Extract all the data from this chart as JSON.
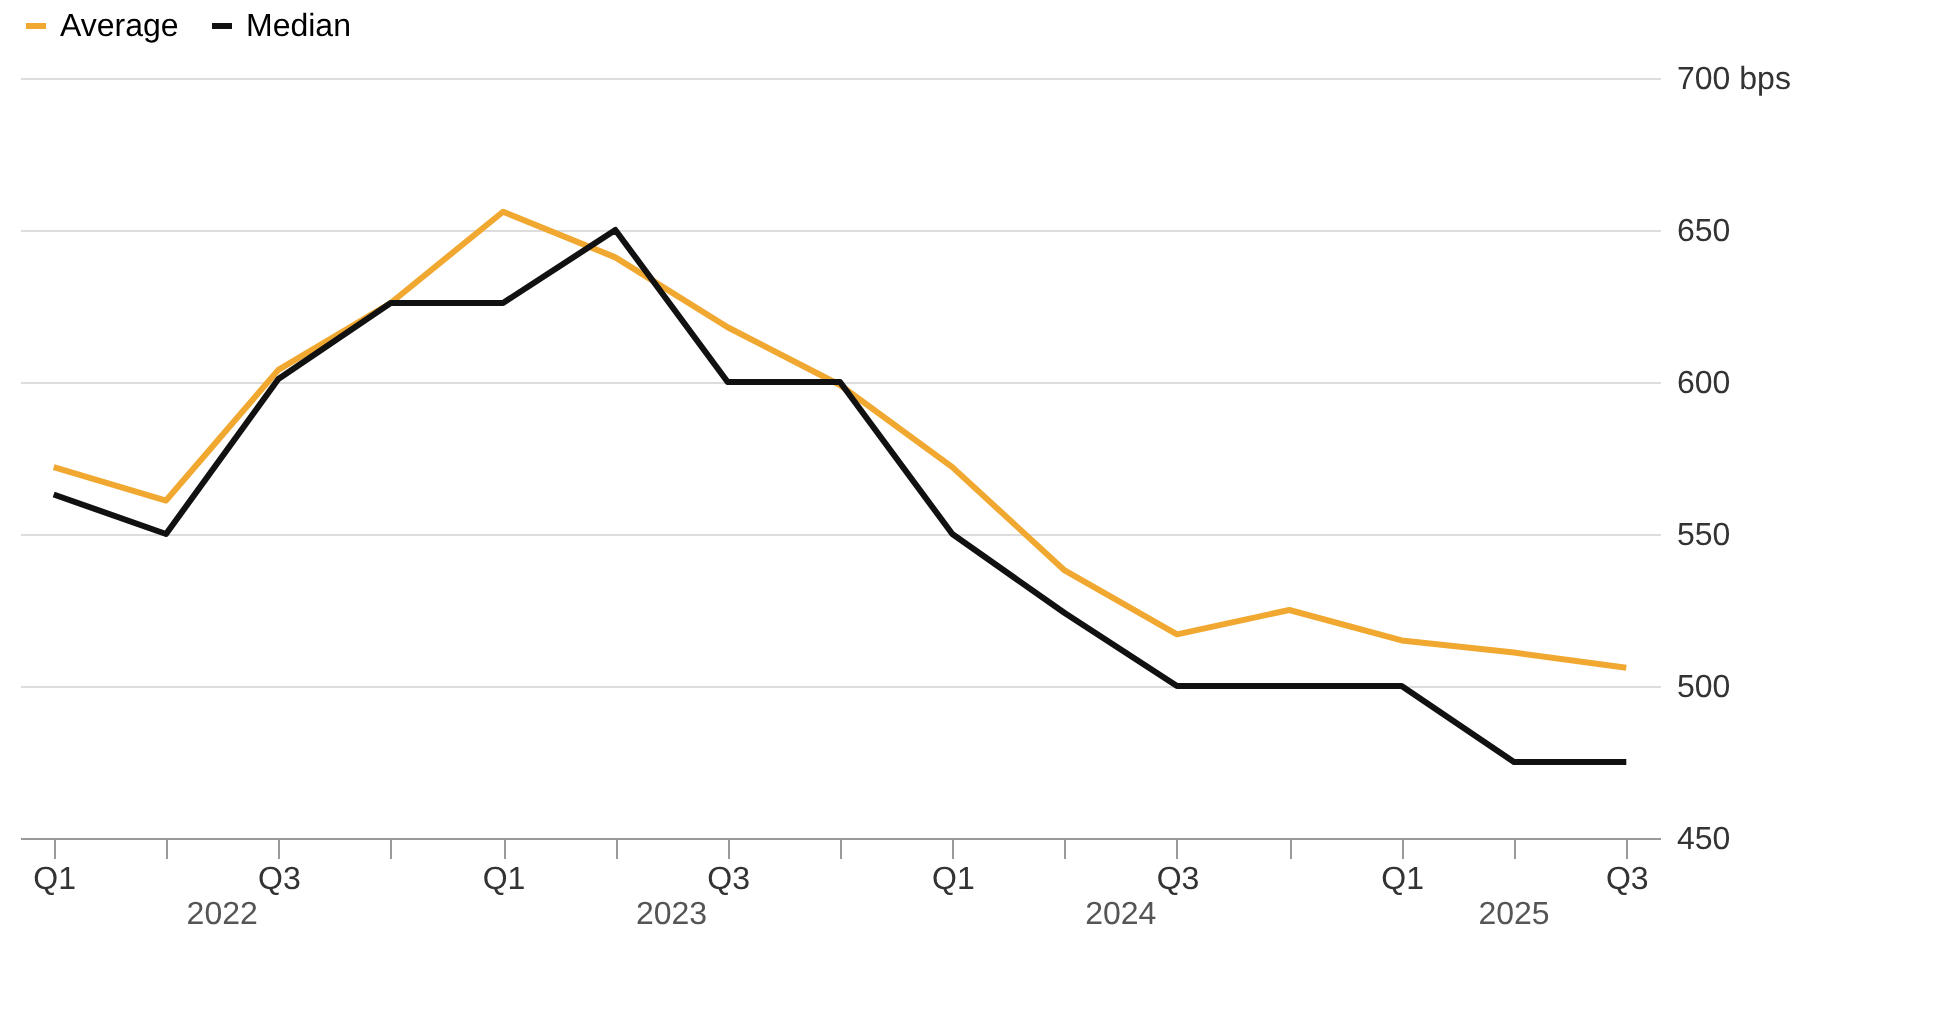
{
  "chart_data": {
    "type": "line",
    "categories": [
      "Q1",
      null,
      "Q3",
      null,
      "Q1",
      null,
      "Q3",
      null,
      "Q1",
      null,
      "Q3",
      null,
      "Q1",
      null,
      "Q3"
    ],
    "series": [
      {
        "name": "Average",
        "color": "#f0a830",
        "values": [
          572,
          561,
          604,
          626,
          656,
          641,
          618,
          599,
          572,
          538,
          517,
          525,
          515,
          511,
          506
        ]
      },
      {
        "name": "Median",
        "color": "#111111",
        "values": [
          563,
          550,
          601,
          626,
          626,
          650,
          600,
          600,
          550,
          524,
          500,
          500,
          500,
          475,
          475
        ]
      }
    ],
    "ylim": [
      450,
      700
    ],
    "yticks": [
      450,
      500,
      550,
      600,
      650,
      {
        "value": 700,
        "label": "700 bps"
      }
    ],
    "annotations": [
      "2022",
      "2023",
      "2024",
      "2025"
    ],
    "grid": "y",
    "legend": "top left",
    "marker": "none",
    "line_style": "solid"
  }
}
